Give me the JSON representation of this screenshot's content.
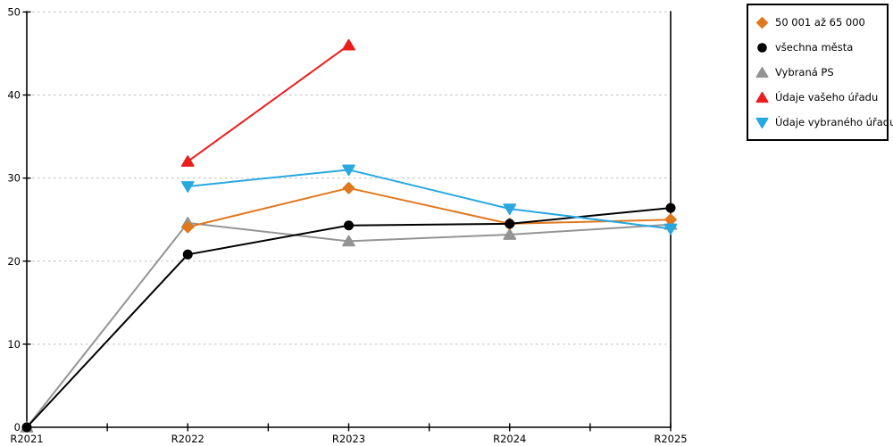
{
  "chart": {
    "background": "#FFFFFF",
    "axis_color": "#000000",
    "grid_color": "#BDBDBD",
    "text_color": "#000000",
    "legend_border_color": "#000000"
  },
  "chart_data": {
    "type": "line",
    "categories": [
      "R2021",
      "R2022",
      "R2023",
      "R2024",
      "R2025"
    ],
    "yticks": [
      0,
      10,
      20,
      30,
      40,
      50
    ],
    "ylim": [
      0,
      50
    ],
    "grid": "horizontal-dashed",
    "legend_position": "outside-top-right",
    "title": "",
    "xlabel": "",
    "ylabel": "",
    "series": [
      {
        "name": "50 001 až 65 000",
        "color": "#E0781E",
        "marker": "diamond",
        "zorder": 2,
        "x": [
          "R2022",
          "R2023",
          "R2024",
          "R2025"
        ],
        "values": [
          24.1,
          28.8,
          24.5,
          25.0
        ]
      },
      {
        "name": "všechna města",
        "color": "#000000",
        "marker": "circle",
        "zorder": 3,
        "x": [
          "R2021",
          "R2022",
          "R2023",
          "R2024",
          "R2025"
        ],
        "values": [
          0,
          20.8,
          24.3,
          24.5,
          26.4
        ]
      },
      {
        "name": "Vybraná PS",
        "color": "#949494",
        "marker": "triangle-up",
        "zorder": 1,
        "x": [
          "R2021",
          "R2022",
          "R2023",
          "R2024",
          "R2025"
        ],
        "values": [
          0,
          24.6,
          22.4,
          23.2,
          24.4
        ]
      },
      {
        "name": "Údaje vašeho úřadu",
        "color": "#EC1D1D",
        "marker": "triangle-up",
        "zorder": 4,
        "x": [
          "R2022",
          "R2023"
        ],
        "values": [
          32,
          46
        ]
      },
      {
        "name": "Údaje vybraného úřadu",
        "color": "#29A8E0",
        "marker": "triangle-down",
        "zorder": 5,
        "x": [
          "R2022",
          "R2023",
          "R2024",
          "R2025"
        ],
        "values": [
          29.0,
          31.0,
          26.3,
          23.9
        ]
      }
    ]
  }
}
